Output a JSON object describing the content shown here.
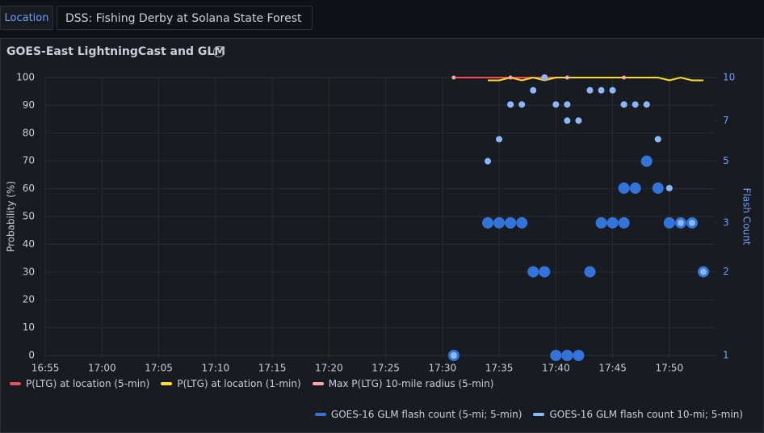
{
  "header": {
    "location_button": "Location",
    "dropdown": "DSS: Fishing Derby at Solana State Forest"
  },
  "chart_data": {
    "type": "line",
    "title": "GOES-East LightningCast and GLM",
    "ylabel": "Probability (%)",
    "y2label": "Flash Count",
    "xlim": [
      "16:54",
      "17:54"
    ],
    "xticks": [
      "16:55",
      "17:00",
      "17:05",
      "17:10",
      "17:15",
      "17:20",
      "17:25",
      "17:30",
      "17:35",
      "17:40",
      "17:45",
      "17:50"
    ],
    "ylim": [
      0,
      100
    ],
    "yticks": [
      0,
      10,
      20,
      30,
      40,
      50,
      60,
      70,
      80,
      90,
      100
    ],
    "y2lim": [
      1,
      10
    ],
    "y2ticks": [
      1,
      2,
      3,
      5,
      7,
      10
    ],
    "y2log": true,
    "grid": true,
    "series": [
      {
        "name": "P(LTG) at location (5-min)",
        "color": "#f2495c",
        "style": "line",
        "x": [
          "17:31",
          "17:36",
          "17:41",
          "17:46"
        ],
        "values": [
          100,
          100,
          100,
          100
        ]
      },
      {
        "name": "P(LTG) at location (1-min)",
        "color": "#fade2a",
        "style": "line",
        "x": [
          "17:34",
          "17:35",
          "17:36",
          "17:37",
          "17:38",
          "17:39",
          "17:40",
          "17:41",
          "17:42",
          "17:43",
          "17:44",
          "17:45",
          "17:46",
          "17:47",
          "17:48",
          "17:49",
          "17:50",
          "17:51",
          "17:52",
          "17:53"
        ],
        "values": [
          99,
          99,
          100,
          99,
          100,
          99,
          100,
          100,
          100,
          100,
          100,
          100,
          100,
          100,
          100,
          100,
          99,
          100,
          99,
          99
        ]
      },
      {
        "name": "Max P(LTG) 10-mile radius (5-min)",
        "color": "#ffa6b0",
        "style": "points",
        "x": [
          "17:31",
          "17:36",
          "17:41",
          "17:46"
        ],
        "values": [
          100,
          100,
          100,
          100
        ]
      },
      {
        "name": "GOES-16 GLM flash count (5-mi; 5-min)",
        "color": "#3274d9",
        "style": "points",
        "axis": "y2",
        "x": [
          "17:31",
          "17:34",
          "17:35",
          "17:36",
          "17:36",
          "17:37",
          "17:38",
          "17:39",
          "17:40",
          "17:41",
          "17:41",
          "17:42",
          "17:43",
          "17:44",
          "17:45",
          "17:46",
          "17:46",
          "17:47",
          "17:48",
          "17:49",
          "17:50",
          "17:51",
          "17:52",
          "17:53"
        ],
        "values": [
          1,
          3,
          3,
          3,
          3,
          3,
          2,
          2,
          1,
          1,
          1,
          1,
          2,
          3,
          3,
          3,
          4,
          4,
          5,
          4,
          3,
          3,
          3,
          2
        ]
      },
      {
        "name": "GOES-16 GLM flash count 10-mi; 5-min)",
        "color": "#8ab8ff",
        "style": "points",
        "axis": "y2",
        "x": [
          "17:31",
          "17:34",
          "17:35",
          "17:36",
          "17:36",
          "17:37",
          "17:38",
          "17:39",
          "17:40",
          "17:41",
          "17:41",
          "17:42",
          "17:43",
          "17:44",
          "17:45",
          "17:46",
          "17:46",
          "17:47",
          "17:48",
          "17:49",
          "17:50",
          "17:51",
          "17:52",
          "17:53"
        ],
        "values": [
          1,
          5,
          6,
          8,
          8,
          8,
          9,
          10,
          8,
          8,
          7,
          7,
          9,
          9,
          9,
          8,
          8,
          8,
          8,
          6,
          4,
          3,
          3,
          2
        ]
      }
    ]
  }
}
